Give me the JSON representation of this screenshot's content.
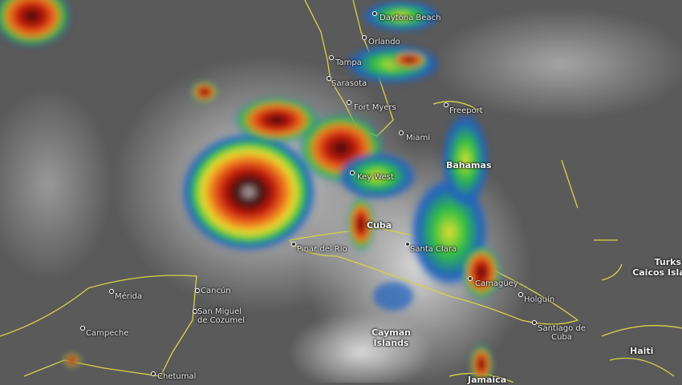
{
  "map": {
    "type": "infrared satellite imagery",
    "colors": {
      "ocean_cloud_gray": "#5a5a5a",
      "cloud_white": "#e6e6e6",
      "coastline": "#d8d24a",
      "intense_red": "#c81c10",
      "dark_core": "#3a0a08",
      "orange": "#f08020",
      "yellow": "#e8e030",
      "green": "#30c040",
      "blue": "#2060c0"
    },
    "cities": [
      {
        "name": "Daytona Beach"
      },
      {
        "name": "Orlando"
      },
      {
        "name": "Tampa"
      },
      {
        "name": "Sarasota"
      },
      {
        "name": "Fort Myers"
      },
      {
        "name": "Miami"
      },
      {
        "name": "Key West"
      },
      {
        "name": "Freeport"
      },
      {
        "name": "Pinar del Río"
      },
      {
        "name": "Santa Clara"
      },
      {
        "name": "Camagüey"
      },
      {
        "name": "Holguín"
      },
      {
        "name": "Santiago de Cuba"
      },
      {
        "name": "Cancún"
      },
      {
        "name": "Mérida"
      },
      {
        "name": "Campeche"
      },
      {
        "name": "San Miguel de Cozumel"
      },
      {
        "name": "Chetumal"
      }
    ],
    "regions": [
      {
        "name": "Bahamas"
      },
      {
        "name": "Cuba"
      },
      {
        "name": "Cayman Islands"
      },
      {
        "name": "Jamaica"
      },
      {
        "name": "Haiti"
      },
      {
        "name": "Turks and Caicos Islands"
      }
    ]
  }
}
